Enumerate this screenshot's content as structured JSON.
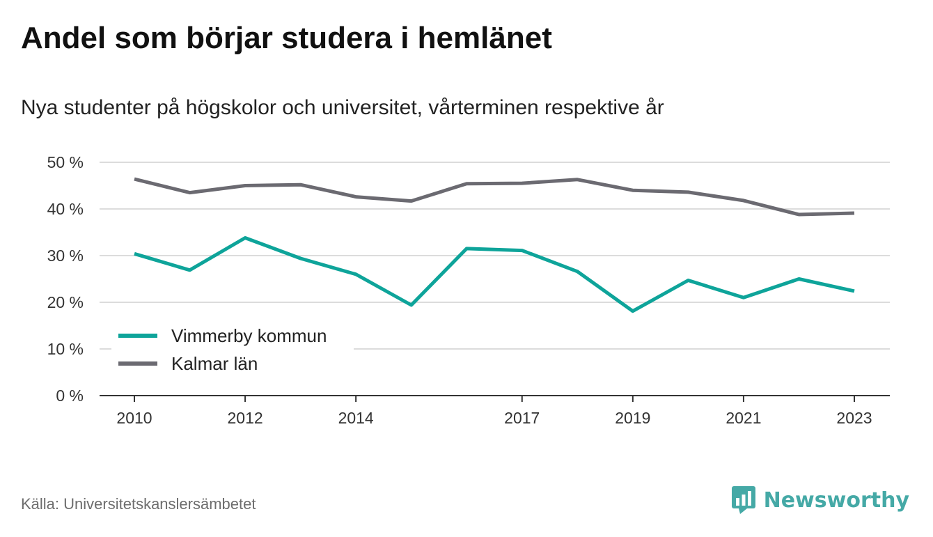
{
  "title": "Andel som börjar studera i hemlänet",
  "subtitle": "Nya studenter på högskolor och universitet, vårterminen respektive år",
  "source": "Källa: Universitetskanslersämbetet",
  "brand": {
    "name": "Newsworthy",
    "icon": "bar-chart-speech-bubble-icon",
    "color": "#45a9a6"
  },
  "chart_data": {
    "type": "line",
    "x": [
      2010,
      2011,
      2012,
      2013,
      2014,
      2015,
      2016,
      2017,
      2018,
      2019,
      2020,
      2021,
      2022,
      2023
    ],
    "x_ticks": [
      2010,
      2012,
      2014,
      2017,
      2019,
      2021,
      2023
    ],
    "x_tick_labels": [
      "2010",
      "2012",
      "2014",
      "2017",
      "2019",
      "2021",
      "2023"
    ],
    "y_ticks": [
      0,
      10,
      20,
      30,
      40,
      50
    ],
    "y_tick_labels": [
      "0 %",
      "10 %",
      "20 %",
      "30 %",
      "40 %",
      "50 %"
    ],
    "ylim": [
      0,
      50
    ],
    "grid": true,
    "legend_position": "bottom-left",
    "series": [
      {
        "name": "Vimmerby kommun",
        "color": "#0ea49a",
        "values": [
          30.4,
          26.9,
          33.8,
          29.4,
          26.0,
          19.4,
          31.5,
          31.1,
          26.6,
          18.1,
          24.7,
          21.0,
          25.0,
          22.4
        ]
      },
      {
        "name": "Kalmar län",
        "color": "#6b6a71",
        "values": [
          46.4,
          43.5,
          45.0,
          45.2,
          42.6,
          41.7,
          45.4,
          45.5,
          46.3,
          44.0,
          43.6,
          41.8,
          38.8,
          39.1
        ]
      }
    ]
  }
}
